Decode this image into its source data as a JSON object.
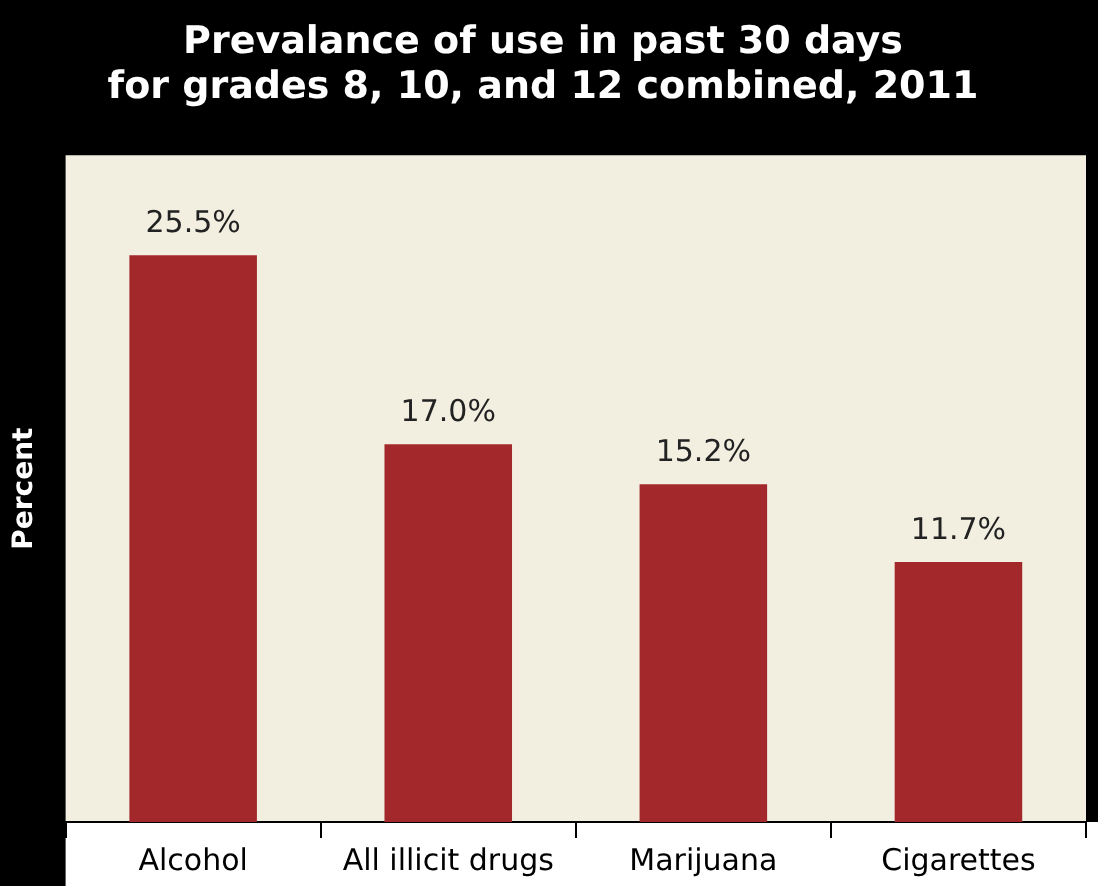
{
  "chart_data": {
    "type": "bar",
    "title": "Prevalance of use in past 30 days\nfor grades 8, 10, and 12 combined, 2011",
    "ylabel": "Percent",
    "categories": [
      "Alcohol",
      "All illicit drugs",
      "Marijuana",
      "Cigarettes"
    ],
    "values": [
      25.5,
      17.0,
      15.2,
      11.7
    ],
    "value_labels": [
      "25.5%",
      "17.0%",
      "15.2%",
      "11.7%"
    ],
    "color": "#a3282b",
    "ylim": [
      0,
      30
    ],
    "tick_labels": "x",
    "grid": false,
    "legend": false
  }
}
